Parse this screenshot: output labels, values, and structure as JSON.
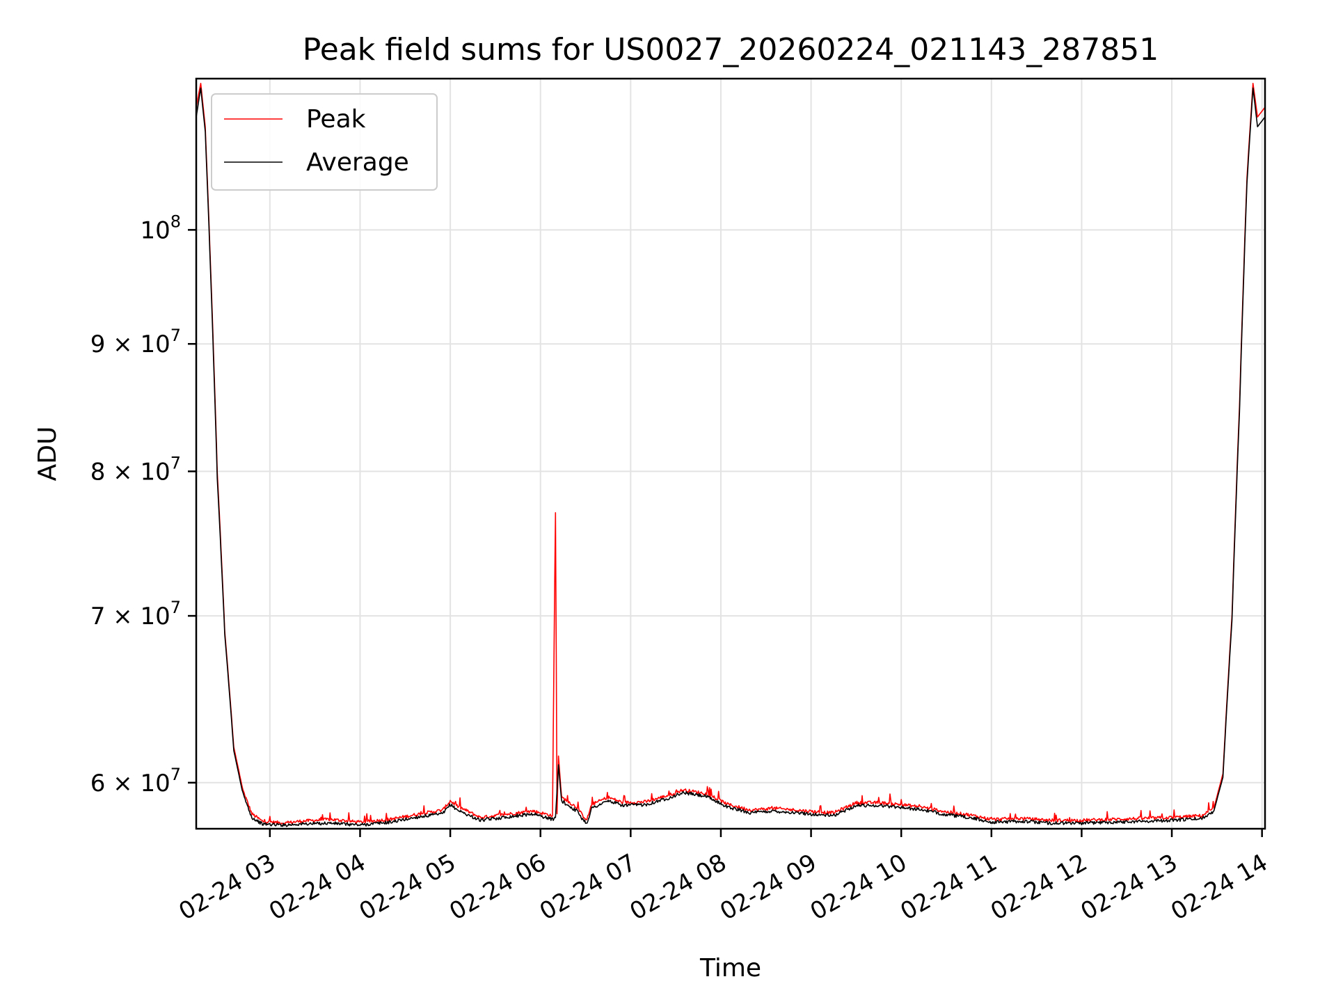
{
  "chart_data": {
    "type": "line",
    "title": "Peak field sums for US0027_20260224_021143_287851",
    "xlabel": "Time",
    "ylabel": "ADU",
    "x_axis_type": "datetime",
    "y_scale": "log",
    "xlim": [
      "2026-02-24 02:11",
      "2026-02-24 14:02"
    ],
    "ylim": [
      57500000,
      115000000
    ],
    "x_ticks": [
      {
        "value": "2026-02-24 03:00",
        "label": "02-24 03"
      },
      {
        "value": "2026-02-24 04:00",
        "label": "02-24 04"
      },
      {
        "value": "2026-02-24 05:00",
        "label": "02-24 05"
      },
      {
        "value": "2026-02-24 06:00",
        "label": "02-24 06"
      },
      {
        "value": "2026-02-24 07:00",
        "label": "02-24 07"
      },
      {
        "value": "2026-02-24 08:00",
        "label": "02-24 08"
      },
      {
        "value": "2026-02-24 09:00",
        "label": "02-24 09"
      },
      {
        "value": "2026-02-24 10:00",
        "label": "02-24 10"
      },
      {
        "value": "2026-02-24 11:00",
        "label": "02-24 11"
      },
      {
        "value": "2026-02-24 12:00",
        "label": "02-24 12"
      },
      {
        "value": "2026-02-24 13:00",
        "label": "02-24 13"
      },
      {
        "value": "2026-02-24 14:00",
        "label": "02-24 14"
      }
    ],
    "y_ticks": [
      {
        "value": 60000000,
        "mantissa": "6",
        "base": "10",
        "exponent": "7"
      },
      {
        "value": 70000000,
        "mantissa": "7",
        "base": "10",
        "exponent": "7"
      },
      {
        "value": 80000000,
        "mantissa": "8",
        "base": "10",
        "exponent": "7"
      },
      {
        "value": 90000000,
        "mantissa": "9",
        "base": "10",
        "exponent": "7"
      },
      {
        "value": 100000000,
        "mantissa": "",
        "base": "10",
        "exponent": "8"
      }
    ],
    "grid": true,
    "legend_position": "top-left",
    "series": [
      {
        "name": "Peak",
        "color": "#ff0000",
        "points": [
          [
            "2026-02-24 02:11",
            112000000
          ],
          [
            "2026-02-24 02:14",
            114500000
          ],
          [
            "2026-02-24 02:17",
            110000000
          ],
          [
            "2026-02-24 02:21",
            95000000
          ],
          [
            "2026-02-24 02:25",
            80000000
          ],
          [
            "2026-02-24 02:30",
            69000000
          ],
          [
            "2026-02-24 02:36",
            62000000
          ],
          [
            "2026-02-24 02:42",
            59600000
          ],
          [
            "2026-02-24 02:48",
            58300000
          ],
          [
            "2026-02-24 02:55",
            57900000
          ],
          [
            "2026-02-24 03:10",
            57800000
          ],
          [
            "2026-02-24 03:20",
            57900000
          ],
          [
            "2026-02-24 03:40",
            58000000
          ],
          [
            "2026-02-24 04:00",
            57850000
          ],
          [
            "2026-02-24 04:20",
            58000000
          ],
          [
            "2026-02-24 04:40",
            58300000
          ],
          [
            "2026-02-24 04:55",
            58500000
          ],
          [
            "2026-02-24 05:00",
            59000000
          ],
          [
            "2026-02-24 05:05",
            58700000
          ],
          [
            "2026-02-24 05:10",
            58500000
          ],
          [
            "2026-02-24 05:20",
            58100000
          ],
          [
            "2026-02-24 05:40",
            58300000
          ],
          [
            "2026-02-24 05:55",
            58450000
          ],
          [
            "2026-02-24 06:08",
            58200000
          ],
          [
            "2026-02-24 06:10",
            77000000
          ],
          [
            "2026-02-24 06:11",
            58300000
          ],
          [
            "2026-02-24 06:12",
            61500000
          ],
          [
            "2026-02-24 06:14",
            59200000
          ],
          [
            "2026-02-24 06:25",
            58600000
          ],
          [
            "2026-02-24 06:28",
            58200000
          ],
          [
            "2026-02-24 06:31",
            58000000
          ],
          [
            "2026-02-24 06:34",
            58800000
          ],
          [
            "2026-02-24 06:45",
            59200000
          ],
          [
            "2026-02-24 06:55",
            58900000
          ],
          [
            "2026-02-24 07:10",
            58950000
          ],
          [
            "2026-02-24 07:25",
            59300000
          ],
          [
            "2026-02-24 07:35",
            59600000
          ],
          [
            "2026-02-24 07:50",
            59400000
          ],
          [
            "2026-02-24 08:05",
            58800000
          ],
          [
            "2026-02-24 08:20",
            58500000
          ],
          [
            "2026-02-24 08:35",
            58600000
          ],
          [
            "2026-02-24 08:50",
            58500000
          ],
          [
            "2026-02-24 09:05",
            58400000
          ],
          [
            "2026-02-24 09:15",
            58350000
          ],
          [
            "2026-02-24 09:30",
            58900000
          ],
          [
            "2026-02-24 09:45",
            58900000
          ],
          [
            "2026-02-24 10:00",
            58800000
          ],
          [
            "2026-02-24 10:15",
            58650000
          ],
          [
            "2026-02-24 10:30",
            58400000
          ],
          [
            "2026-02-24 10:45",
            58250000
          ],
          [
            "2026-02-24 11:00",
            58000000
          ],
          [
            "2026-02-24 11:20",
            58050000
          ],
          [
            "2026-02-24 11:40",
            57950000
          ],
          [
            "2026-02-24 12:00",
            57950000
          ],
          [
            "2026-02-24 12:20",
            58000000
          ],
          [
            "2026-02-24 12:40",
            58050000
          ],
          [
            "2026-02-24 13:00",
            58100000
          ],
          [
            "2026-02-24 13:20",
            58200000
          ],
          [
            "2026-02-24 13:28",
            58600000
          ],
          [
            "2026-02-24 13:34",
            60500000
          ],
          [
            "2026-02-24 13:40",
            70000000
          ],
          [
            "2026-02-24 13:45",
            85000000
          ],
          [
            "2026-02-24 13:50",
            105000000
          ],
          [
            "2026-02-24 13:54",
            114500000
          ],
          [
            "2026-02-24 13:57",
            111000000
          ],
          [
            "2026-02-24 14:02",
            112000000
          ]
        ]
      },
      {
        "name": "Average",
        "color": "#000000",
        "points": [
          [
            "2026-02-24 02:11",
            111000000
          ],
          [
            "2026-02-24 02:14",
            114000000
          ],
          [
            "2026-02-24 02:17",
            109500000
          ],
          [
            "2026-02-24 02:21",
            94500000
          ],
          [
            "2026-02-24 02:25",
            79500000
          ],
          [
            "2026-02-24 02:30",
            68800000
          ],
          [
            "2026-02-24 02:36",
            61800000
          ],
          [
            "2026-02-24 02:42",
            59400000
          ],
          [
            "2026-02-24 02:48",
            58100000
          ],
          [
            "2026-02-24 02:55",
            57750000
          ],
          [
            "2026-02-24 03:10",
            57700000
          ],
          [
            "2026-02-24 03:20",
            57750000
          ],
          [
            "2026-02-24 03:40",
            57800000
          ],
          [
            "2026-02-24 04:00",
            57700000
          ],
          [
            "2026-02-24 04:20",
            57850000
          ],
          [
            "2026-02-24 04:40",
            58150000
          ],
          [
            "2026-02-24 04:55",
            58300000
          ],
          [
            "2026-02-24 05:00",
            58800000
          ],
          [
            "2026-02-24 05:05",
            58500000
          ],
          [
            "2026-02-24 05:10",
            58300000
          ],
          [
            "2026-02-24 05:20",
            57950000
          ],
          [
            "2026-02-24 05:40",
            58150000
          ],
          [
            "2026-02-24 05:55",
            58300000
          ],
          [
            "2026-02-24 06:08",
            58000000
          ],
          [
            "2026-02-24 06:10",
            58100000
          ],
          [
            "2026-02-24 06:12",
            61000000
          ],
          [
            "2026-02-24 06:14",
            59000000
          ],
          [
            "2026-02-24 06:25",
            58400000
          ],
          [
            "2026-02-24 06:28",
            58000000
          ],
          [
            "2026-02-24 06:31",
            57800000
          ],
          [
            "2026-02-24 06:34",
            58600000
          ],
          [
            "2026-02-24 06:45",
            59000000
          ],
          [
            "2026-02-24 06:55",
            58750000
          ],
          [
            "2026-02-24 07:10",
            58800000
          ],
          [
            "2026-02-24 07:25",
            59150000
          ],
          [
            "2026-02-24 07:35",
            59450000
          ],
          [
            "2026-02-24 07:50",
            59250000
          ],
          [
            "2026-02-24 08:05",
            58650000
          ],
          [
            "2026-02-24 08:20",
            58350000
          ],
          [
            "2026-02-24 08:35",
            58450000
          ],
          [
            "2026-02-24 08:50",
            58350000
          ],
          [
            "2026-02-24 09:05",
            58250000
          ],
          [
            "2026-02-24 09:15",
            58200000
          ],
          [
            "2026-02-24 09:30",
            58750000
          ],
          [
            "2026-02-24 09:45",
            58750000
          ],
          [
            "2026-02-24 10:00",
            58650000
          ],
          [
            "2026-02-24 10:15",
            58500000
          ],
          [
            "2026-02-24 10:30",
            58250000
          ],
          [
            "2026-02-24 10:45",
            58100000
          ],
          [
            "2026-02-24 11:00",
            57850000
          ],
          [
            "2026-02-24 11:20",
            57900000
          ],
          [
            "2026-02-24 11:40",
            57800000
          ],
          [
            "2026-02-24 12:00",
            57800000
          ],
          [
            "2026-02-24 12:20",
            57850000
          ],
          [
            "2026-02-24 12:40",
            57900000
          ],
          [
            "2026-02-24 13:00",
            57950000
          ],
          [
            "2026-02-24 13:20",
            58050000
          ],
          [
            "2026-02-24 13:28",
            58450000
          ],
          [
            "2026-02-24 13:34",
            60300000
          ],
          [
            "2026-02-24 13:40",
            69700000
          ],
          [
            "2026-02-24 13:45",
            84500000
          ],
          [
            "2026-02-24 13:50",
            104500000
          ],
          [
            "2026-02-24 13:54",
            114000000
          ],
          [
            "2026-02-24 13:57",
            110000000
          ],
          [
            "2026-02-24 14:02",
            111000000
          ]
        ]
      }
    ]
  }
}
